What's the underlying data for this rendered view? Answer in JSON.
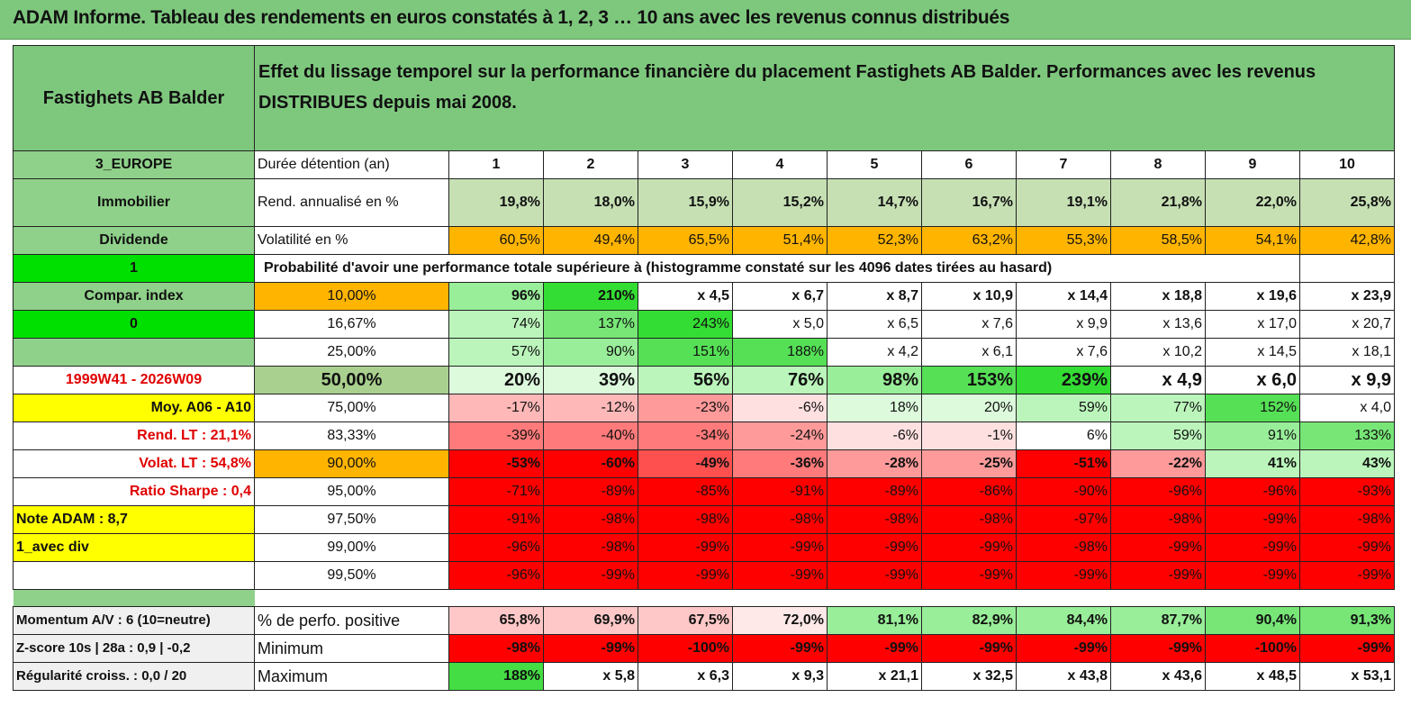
{
  "title": "ADAM Informe. Tableau des rendements en euros constatés à 1, 2, 3 … 10 ans avec les revenus connus distribués",
  "header": {
    "fund_name": "Fastighets AB Balder",
    "description": "Effet du lissage temporel sur la performance financière du placement Fastighets AB Balder. Performances avec les revenus DISTRIBUES depuis mai 2008."
  },
  "side": {
    "region": "3_EUROPE",
    "sector": "Immobilier",
    "type": "Dividende",
    "flag1": "1",
    "compar": "Compar. index",
    "flag0": "0",
    "period": "1999W41 - 2026W09",
    "moy": "Moy. A06 - A10",
    "rend_lt": "Rend. LT :   21,1%",
    "volat_lt": "Volat. LT :   54,8%",
    "sharpe": "Ratio Sharpe :    0,4",
    "note": "Note ADAM : 8,7",
    "avec_div": "1_avec div",
    "momentum": "Momentum A/V : 6 (10=neutre)",
    "zscore": "Z-score 10s | 28a : 0,9 | -0,2",
    "regularite": "Régularité croiss. : 0,0 / 20"
  },
  "years_label": "Durée détention (an)",
  "years": [
    "1",
    "2",
    "3",
    "4",
    "5",
    "6",
    "7",
    "8",
    "9",
    "10"
  ],
  "rend_label": "Rend. annualisé en %",
  "rend": [
    "19,8%",
    "18,0%",
    "15,9%",
    "15,2%",
    "14,7%",
    "16,7%",
    "19,1%",
    "21,8%",
    "22,0%",
    "25,8%"
  ],
  "vol_label": "Volatilité en %",
  "vol": [
    "60,5%",
    "49,4%",
    "65,5%",
    "51,4%",
    "52,3%",
    "63,2%",
    "55,3%",
    "58,5%",
    "54,1%",
    "42,8%"
  ],
  "prob_title": "Probabilité d'avoir une performance totale supérieure à (histogramme constaté sur les 4096 dates tirées au hasard)",
  "prob_rows": [
    {
      "pct": "10,00%",
      "vals": [
        "96%",
        "210%",
        "x 4,5",
        "x 6,7",
        "x 8,7",
        "x 10,9",
        "x 14,4",
        "x 18,8",
        "x 19,6",
        "x 23,9"
      ]
    },
    {
      "pct": "16,67%",
      "vals": [
        "74%",
        "137%",
        "243%",
        "x 5,0",
        "x 6,5",
        "x 7,6",
        "x 9,9",
        "x 13,6",
        "x 17,0",
        "x 20,7"
      ]
    },
    {
      "pct": "25,00%",
      "vals": [
        "57%",
        "90%",
        "151%",
        "188%",
        "x 4,2",
        "x 6,1",
        "x 7,6",
        "x 10,2",
        "x 14,5",
        "x 18,1"
      ]
    },
    {
      "pct": "50,00%",
      "vals": [
        "20%",
        "39%",
        "56%",
        "76%",
        "98%",
        "153%",
        "239%",
        "x 4,9",
        "x 6,0",
        "x 9,9"
      ]
    },
    {
      "pct": "75,00%",
      "vals": [
        "-17%",
        "-12%",
        "-23%",
        "-6%",
        "18%",
        "20%",
        "59%",
        "77%",
        "152%",
        "x 4,0"
      ]
    },
    {
      "pct": "83,33%",
      "vals": [
        "-39%",
        "-40%",
        "-34%",
        "-24%",
        "-6%",
        "-1%",
        "6%",
        "59%",
        "91%",
        "133%"
      ]
    },
    {
      "pct": "90,00%",
      "vals": [
        "-53%",
        "-60%",
        "-49%",
        "-36%",
        "-28%",
        "-25%",
        "-51%",
        "-22%",
        "41%",
        "43%"
      ]
    },
    {
      "pct": "95,00%",
      "vals": [
        "-71%",
        "-89%",
        "-85%",
        "-91%",
        "-89%",
        "-86%",
        "-90%",
        "-96%",
        "-96%",
        "-93%"
      ]
    },
    {
      "pct": "97,50%",
      "vals": [
        "-91%",
        "-98%",
        "-98%",
        "-98%",
        "-98%",
        "-98%",
        "-97%",
        "-98%",
        "-99%",
        "-98%"
      ]
    },
    {
      "pct": "99,00%",
      "vals": [
        "-96%",
        "-98%",
        "-99%",
        "-99%",
        "-99%",
        "-99%",
        "-98%",
        "-99%",
        "-99%",
        "-99%"
      ]
    },
    {
      "pct": "99,50%",
      "vals": [
        "-96%",
        "-99%",
        "-99%",
        "-99%",
        "-99%",
        "-99%",
        "-99%",
        "-99%",
        "-99%",
        "-99%"
      ]
    }
  ],
  "pos_label": "% de perfo. positive",
  "pos": [
    "65,8%",
    "69,9%",
    "67,5%",
    "72,0%",
    "81,1%",
    "82,9%",
    "84,4%",
    "87,7%",
    "90,4%",
    "91,3%"
  ],
  "min_label": "Minimum",
  "min": [
    "-98%",
    "-99%",
    "-100%",
    "-99%",
    "-99%",
    "-99%",
    "-99%",
    "-99%",
    "-100%",
    "-99%"
  ],
  "max_label": "Maximum",
  "max": [
    "188%",
    "x 5,8",
    "x 6,3",
    "x 9,3",
    "x 21,1",
    "x 32,5",
    "x 43,8",
    "x 43,6",
    "x 48,5",
    "x 53,1"
  ],
  "colors": {
    "header_green": "#7ec87e",
    "lime": "#00e000",
    "yellow": "#ffff00",
    "orange": "#ffb400",
    "red": "#ff0000",
    "pale_green": "#c6e0b4"
  }
}
